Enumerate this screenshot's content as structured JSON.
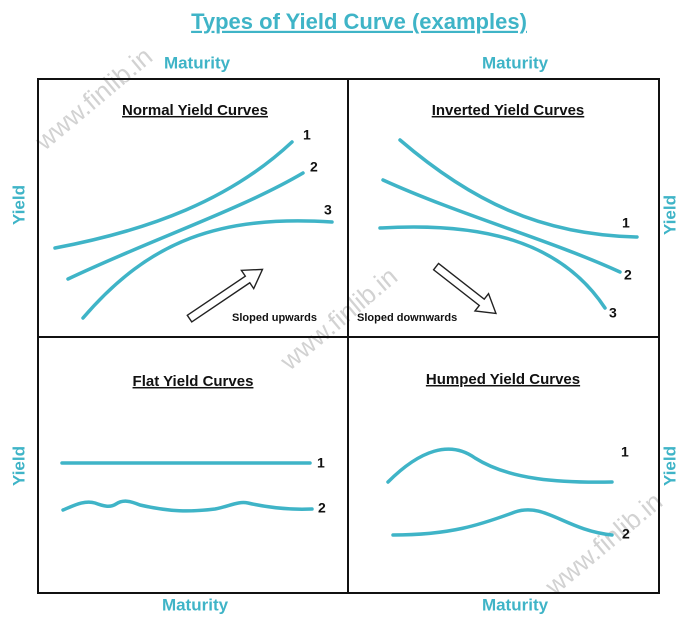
{
  "title": "Types of Yield Curve (examples)",
  "watermark": "www.finlib.in",
  "panels": [
    {
      "title": "Normal Yield Curves",
      "x_label": "Maturity",
      "y_label": "Yield",
      "curve_labels": [
        "1",
        "2",
        "3"
      ],
      "note": "Sloped upwards"
    },
    {
      "title": "Inverted Yield Curves",
      "x_label": "Maturity",
      "y_label": "Yield",
      "curve_labels": [
        "1",
        "2",
        "3"
      ],
      "note": "Sloped downwards"
    },
    {
      "title": "Flat Yield Curves",
      "x_label": "Maturity",
      "y_label": "Yield",
      "curve_labels": [
        "1",
        "2"
      ]
    },
    {
      "title": "Humped Yield Curves",
      "x_label": "Maturity",
      "y_label": "Yield",
      "curve_labels": [
        "1",
        "2"
      ]
    }
  ]
}
